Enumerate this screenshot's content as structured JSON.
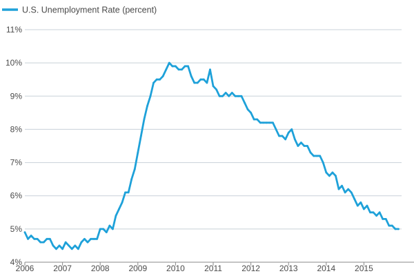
{
  "chart_data": {
    "type": "line",
    "title": "",
    "xlabel": "",
    "ylabel": "",
    "legend": {
      "position": "top-left",
      "entries": [
        "U.S. Unemployment Rate (percent)"
      ]
    },
    "ylim": [
      4,
      11
    ],
    "y_ticks": [
      "4%",
      "5%",
      "6%",
      "7%",
      "8%",
      "9%",
      "10%",
      "11%"
    ],
    "x_ticks": [
      "2006",
      "2007",
      "2008",
      "2009",
      "2010",
      "2011",
      "2012",
      "2013",
      "2014",
      "2015"
    ],
    "grid": "horizontal",
    "series": [
      {
        "name": "U.S. Unemployment Rate (percent)",
        "color": "#1ea1d9",
        "x_start": "2006-01",
        "frequency": "monthly",
        "values": [
          4.9,
          4.7,
          4.8,
          4.7,
          4.7,
          4.6,
          4.6,
          4.7,
          4.7,
          4.5,
          4.4,
          4.5,
          4.4,
          4.6,
          4.5,
          4.4,
          4.5,
          4.4,
          4.6,
          4.7,
          4.6,
          4.7,
          4.7,
          4.7,
          5.0,
          5.0,
          4.9,
          5.1,
          5.0,
          5.4,
          5.6,
          5.8,
          6.1,
          6.1,
          6.5,
          6.8,
          7.3,
          7.8,
          8.3,
          8.7,
          9.0,
          9.4,
          9.5,
          9.5,
          9.6,
          9.8,
          10.0,
          9.9,
          9.9,
          9.8,
          9.8,
          9.9,
          9.9,
          9.6,
          9.4,
          9.4,
          9.5,
          9.5,
          9.4,
          9.8,
          9.3,
          9.2,
          9.0,
          9.0,
          9.1,
          9.0,
          9.1,
          9.0,
          9.0,
          9.0,
          8.8,
          8.6,
          8.5,
          8.3,
          8.3,
          8.2,
          8.2,
          8.2,
          8.2,
          8.2,
          8.0,
          7.8,
          7.8,
          7.7,
          7.9,
          8.0,
          7.7,
          7.5,
          7.6,
          7.5,
          7.5,
          7.3,
          7.2,
          7.2,
          7.2,
          7.0,
          6.7,
          6.6,
          6.7,
          6.6,
          6.2,
          6.3,
          6.1,
          6.2,
          6.1,
          5.9,
          5.7,
          5.8,
          5.6,
          5.7,
          5.5,
          5.5,
          5.4,
          5.5,
          5.3,
          5.3,
          5.1,
          5.1,
          5.0,
          5.0
        ]
      }
    ]
  }
}
